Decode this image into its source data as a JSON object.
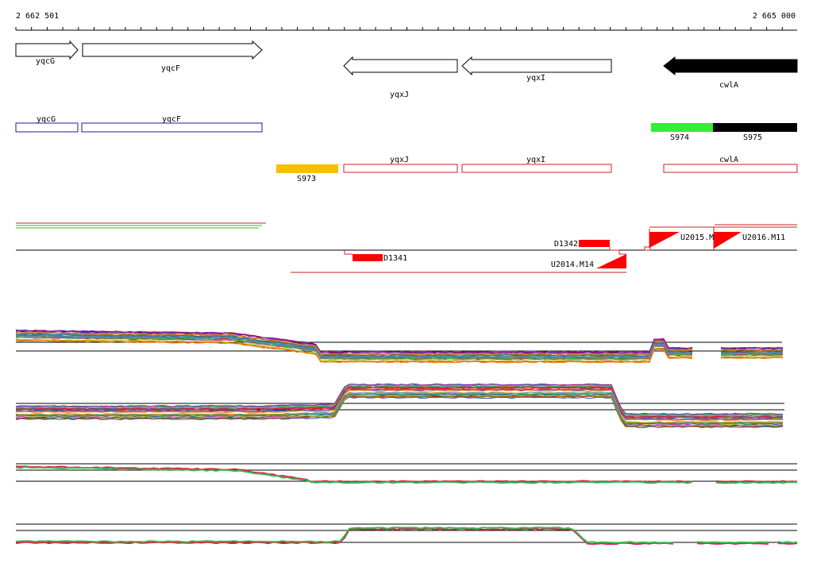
{
  "ruler": {
    "start_label": "2 662 501",
    "end_label": "2 665 000"
  },
  "genes_arrows": [
    {
      "name": "yqcG",
      "strand": "+",
      "color": "#ffffff"
    },
    {
      "name": "yqcF",
      "strand": "+",
      "color": "#ffffff"
    },
    {
      "name": "yqxJ",
      "strand": "-",
      "color": "#ffffff"
    },
    {
      "name": "yqxI",
      "strand": "-",
      "color": "#ffffff"
    },
    {
      "name": "cwlA",
      "strand": "-",
      "color": "#000000"
    }
  ],
  "genes_boxes_plus": [
    {
      "name": "yqcG",
      "color": "#1a1aa6"
    },
    {
      "name": "yqcF",
      "color": "#1a1aa6"
    }
  ],
  "segments_plus": [
    {
      "name": "S974",
      "color": "#33ee33"
    },
    {
      "name": "S975",
      "color": "#000000"
    }
  ],
  "genes_boxes_minus": [
    {
      "name": "yqxJ",
      "color": "#cc2222"
    },
    {
      "name": "yqxI",
      "color": "#cc2222"
    },
    {
      "name": "cwlA",
      "color": "#cc2222"
    }
  ],
  "segments_minus": [
    {
      "name": "S973",
      "color": "#f5c000"
    }
  ],
  "features": [
    {
      "name": "D1342",
      "color": "#ff0000"
    },
    {
      "name": "D1341",
      "color": "#ff0000"
    },
    {
      "name": "U2015.M5",
      "color": "#ff0000"
    },
    {
      "name": "U2016.M11",
      "color": "#ff0000"
    },
    {
      "name": "U2014.M14",
      "color": "#ff0000"
    }
  ],
  "colors": {
    "axis": "#000000",
    "plus_strand": "#1a1aa6",
    "minus_strand": "#cc2222",
    "highlight": "#ff0000"
  }
}
